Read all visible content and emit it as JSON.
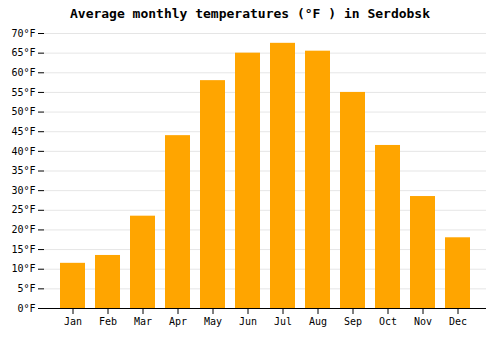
{
  "chart_data": {
    "type": "bar",
    "title": "Average monthly temperatures (°F ) in Serdobsk",
    "categories": [
      "Jan",
      "Feb",
      "Mar",
      "Apr",
      "May",
      "Jun",
      "Jul",
      "Aug",
      "Sep",
      "Oct",
      "Nov",
      "Dec"
    ],
    "values": [
      11.5,
      13.5,
      23.5,
      44,
      58,
      65,
      67.5,
      65.5,
      55,
      41.5,
      28.5,
      18
    ],
    "color": "#FFA500",
    "ylim": [
      0,
      70
    ],
    "yticks": [
      {
        "value": 0,
        "label": "0°F"
      },
      {
        "value": 5,
        "label": "5°F"
      },
      {
        "value": 10,
        "label": "10°F"
      },
      {
        "value": 15,
        "label": "15°F"
      },
      {
        "value": 20,
        "label": "20°F"
      },
      {
        "value": 25,
        "label": "25°F"
      },
      {
        "value": 30,
        "label": "30°F"
      },
      {
        "value": 35,
        "label": "35°F"
      },
      {
        "value": 40,
        "label": "40°F"
      },
      {
        "value": 45,
        "label": "45°F"
      },
      {
        "value": 50,
        "label": "50°F"
      },
      {
        "value": 55,
        "label": "55°F"
      },
      {
        "value": 60,
        "label": "60°F"
      },
      {
        "value": 65,
        "label": "65°F"
      },
      {
        "value": 70,
        "label": "70°F"
      }
    ],
    "grid": true
  }
}
